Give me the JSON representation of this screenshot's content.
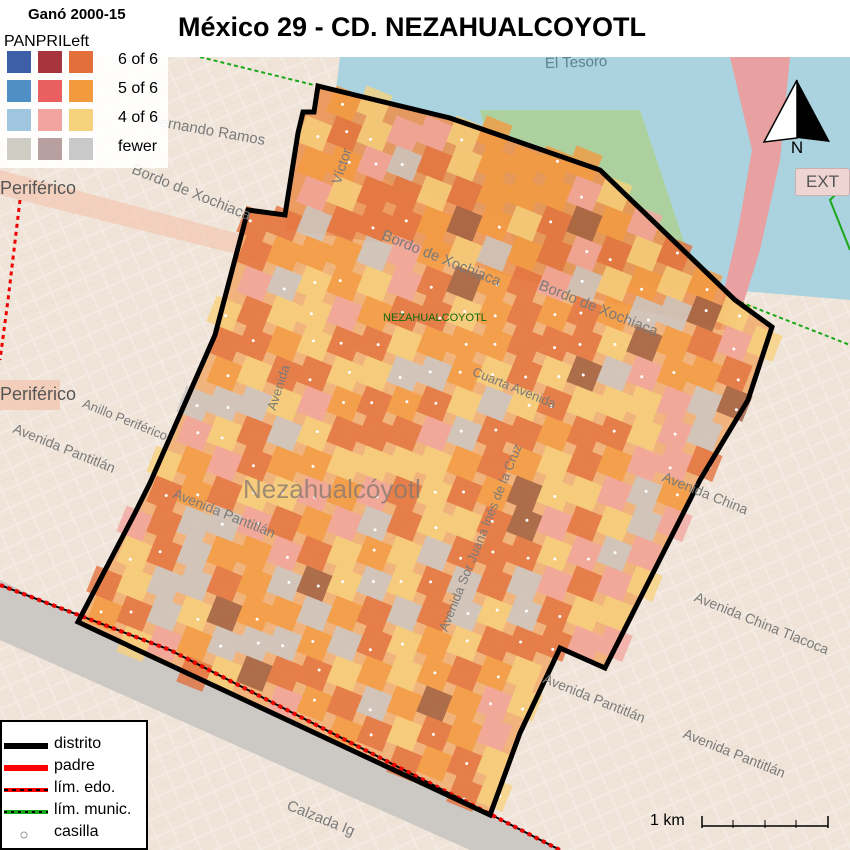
{
  "title": "México 29 - CD. NEZAHUALCOYOTL",
  "legend": {
    "title": "Ganó 2000-15",
    "parties": [
      "PAN",
      "PRI",
      "Left"
    ],
    "levels": [
      "6 of 6",
      "5 of 6",
      "4 of 6",
      "fewer"
    ],
    "colors": {
      "pan": [
        "#3d5fa8",
        "#4f8fc6",
        "#9fc6de",
        "#cdcdc4"
      ],
      "pri": [
        "#a8343e",
        "#ea6060",
        "#f2a5a0",
        "#b8a0a0"
      ],
      "left": [
        "#e3703b",
        "#f39a3f",
        "#f7d27c",
        "#c9c9c9"
      ]
    }
  },
  "map": {
    "district_label": "NEZAHUALCOYOTL",
    "municipality_label": "Nezahualcóyotl",
    "place_labels": [
      "El Tesoro",
      "Periférico",
      "Periférico",
      "Bordo de Xochiaca",
      "Bordo de Xochiaca",
      "Bordo de Xochiaca",
      "Avenida Pantitlán",
      "Avenida Pantitlán",
      "Avenida Pantitlán",
      "Avenida Pantitlán",
      "Avenida China",
      "Avenida China Tlacoca",
      "Calzada Ig",
      "Víctor",
      "Avenida Sor Juana Inés de la Cruz",
      "Avenida",
      "Fernando Ramos",
      "Anillo Periférico",
      "Cuarta Avenida"
    ],
    "highway_sign": "EXT",
    "north": "N",
    "scale": "1 km"
  },
  "line_legend": [
    {
      "label": "distrito",
      "style": "district"
    },
    {
      "label": "padre",
      "style": "parent"
    },
    {
      "label": "lím. edo.",
      "style": "state"
    },
    {
      "label": "lím. munic.",
      "style": "municipal"
    },
    {
      "label": "casilla",
      "style": "booth"
    }
  ]
}
